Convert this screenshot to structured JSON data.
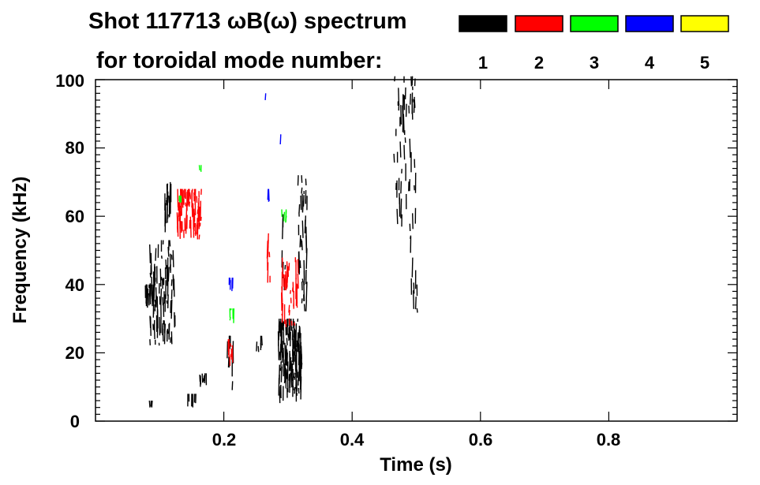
{
  "chart_data": {
    "type": "spectrogram",
    "title_line1": "Shot 117713 ωB(ω) spectrum",
    "title_line2": "for toroidal mode number:",
    "xlabel": "Time (s)",
    "ylabel": "Frequency (kHz)",
    "xlim": [
      0.0,
      1.0
    ],
    "ylim": [
      0,
      100
    ],
    "x_ticks": [
      0.2,
      0.4,
      0.6,
      0.8
    ],
    "x_tick_labels": [
      "0.2",
      "0.4",
      "0.6",
      "0.8"
    ],
    "y_ticks": [
      0,
      20,
      40,
      60,
      80,
      100
    ],
    "y_tick_labels": [
      "0",
      "20",
      "40",
      "60",
      "80",
      "100"
    ],
    "legend": [
      {
        "label": "1",
        "color": "#000000"
      },
      {
        "label": "2",
        "color": "#ff0000"
      },
      {
        "label": "3",
        "color": "#00ff00"
      },
      {
        "label": "4",
        "color": "#0000ff"
      },
      {
        "label": "5",
        "color": "#ffff00"
      }
    ],
    "features": [
      {
        "mode": 1,
        "t0": 0.085,
        "t1": 0.125,
        "f0": 22,
        "f1": 53,
        "density": 90
      },
      {
        "mode": 1,
        "t0": 0.078,
        "t1": 0.095,
        "f0": 33,
        "f1": 40,
        "density": 30
      },
      {
        "mode": 1,
        "t0": 0.108,
        "t1": 0.118,
        "f0": 55,
        "f1": 70,
        "density": 20
      },
      {
        "mode": 1,
        "t0": 0.16,
        "t1": 0.175,
        "f0": 10,
        "f1": 14,
        "density": 8
      },
      {
        "mode": 1,
        "t0": 0.14,
        "t1": 0.16,
        "f0": 4,
        "f1": 8,
        "density": 6
      },
      {
        "mode": 1,
        "t0": 0.082,
        "t1": 0.088,
        "f0": 4,
        "f1": 6,
        "density": 3
      },
      {
        "mode": 1,
        "t0": 0.205,
        "t1": 0.215,
        "f0": 8,
        "f1": 25,
        "density": 12
      },
      {
        "mode": 1,
        "t0": 0.285,
        "t1": 0.322,
        "f0": 5,
        "f1": 30,
        "density": 140
      },
      {
        "mode": 1,
        "t0": 0.315,
        "t1": 0.33,
        "f0": 30,
        "f1": 72,
        "density": 40
      },
      {
        "mode": 1,
        "t0": 0.465,
        "t1": 0.5,
        "f0": 55,
        "f1": 101,
        "density": 55
      },
      {
        "mode": 1,
        "t0": 0.49,
        "t1": 0.502,
        "f0": 30,
        "f1": 55,
        "density": 10
      },
      {
        "mode": 1,
        "t0": 0.25,
        "t1": 0.262,
        "f0": 20,
        "f1": 25,
        "density": 5
      },
      {
        "mode": 1,
        "t0": 0.288,
        "t1": 0.296,
        "f0": 38,
        "f1": 62,
        "density": 6
      },
      {
        "mode": 2,
        "t0": 0.128,
        "t1": 0.165,
        "f0": 53,
        "f1": 68,
        "density": 80
      },
      {
        "mode": 2,
        "t0": 0.29,
        "t1": 0.318,
        "f0": 27,
        "f1": 48,
        "density": 40
      },
      {
        "mode": 2,
        "t0": 0.205,
        "t1": 0.215,
        "f0": 16,
        "f1": 24,
        "density": 8
      },
      {
        "mode": 2,
        "t0": 0.265,
        "t1": 0.272,
        "f0": 40,
        "f1": 55,
        "density": 8
      },
      {
        "mode": 3,
        "t0": 0.128,
        "t1": 0.138,
        "f0": 64,
        "f1": 66,
        "density": 4
      },
      {
        "mode": 3,
        "t0": 0.16,
        "t1": 0.165,
        "f0": 73,
        "f1": 75,
        "density": 2
      },
      {
        "mode": 3,
        "t0": 0.208,
        "t1": 0.216,
        "f0": 28,
        "f1": 33,
        "density": 5
      },
      {
        "mode": 3,
        "t0": 0.29,
        "t1": 0.298,
        "f0": 58,
        "f1": 62,
        "density": 5
      },
      {
        "mode": 4,
        "t0": 0.208,
        "t1": 0.216,
        "f0": 37,
        "f1": 42,
        "density": 5
      },
      {
        "mode": 4,
        "t0": 0.268,
        "t1": 0.273,
        "f0": 64,
        "f1": 68,
        "density": 3
      },
      {
        "mode": 4,
        "t0": 0.262,
        "t1": 0.266,
        "f0": 94,
        "f1": 96,
        "density": 1
      },
      {
        "mode": 4,
        "t0": 0.288,
        "t1": 0.292,
        "f0": 81,
        "f1": 84,
        "density": 1
      }
    ]
  }
}
